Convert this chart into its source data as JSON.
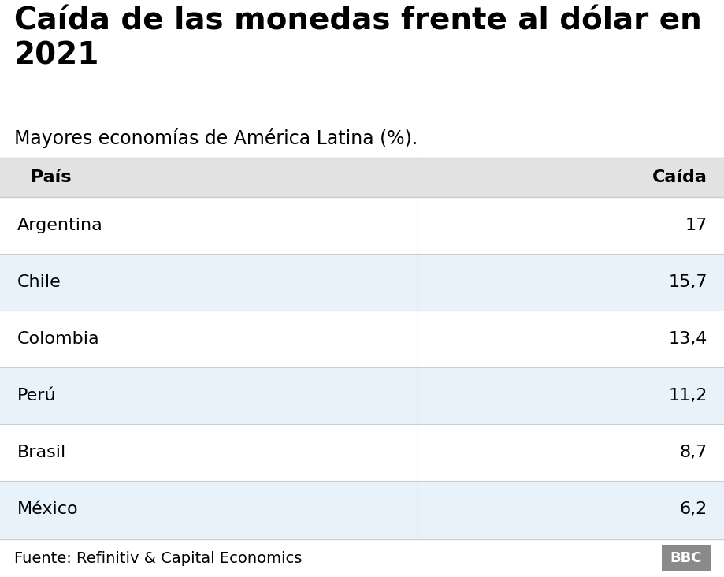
{
  "title": "Caída de las monedas frente al dólar en\n2021",
  "subtitle": "Mayores economías de América Latina (%).",
  "col_header_left": "País",
  "col_header_right": "Caída",
  "rows": [
    {
      "country": "Argentina",
      "value": "17",
      "shaded": false
    },
    {
      "country": "Chile",
      "value": "15,7",
      "shaded": true
    },
    {
      "country": "Colombia",
      "value": "13,4",
      "shaded": false
    },
    {
      "country": "Perú",
      "value": "11,2",
      "shaded": true
    },
    {
      "country": "Brasil",
      "value": "8,7",
      "shaded": false
    },
    {
      "country": "México",
      "value": "6,2",
      "shaded": true
    }
  ],
  "footer": "Fuente: Refinitiv & Capital Economics",
  "bbc_text": "BBC",
  "bg_color": "#ffffff",
  "header_bg": "#e2e2e2",
  "shaded_row_bg": "#e8f2fb",
  "unshaded_row_bg": "#ffffff",
  "footer_bg": "#ffffff",
  "border_color": "#cccccc",
  "bbc_box_color": "#8a8a8a",
  "title_fontsize": 28,
  "subtitle_fontsize": 17,
  "header_fontsize": 16,
  "row_fontsize": 16,
  "footer_fontsize": 14
}
